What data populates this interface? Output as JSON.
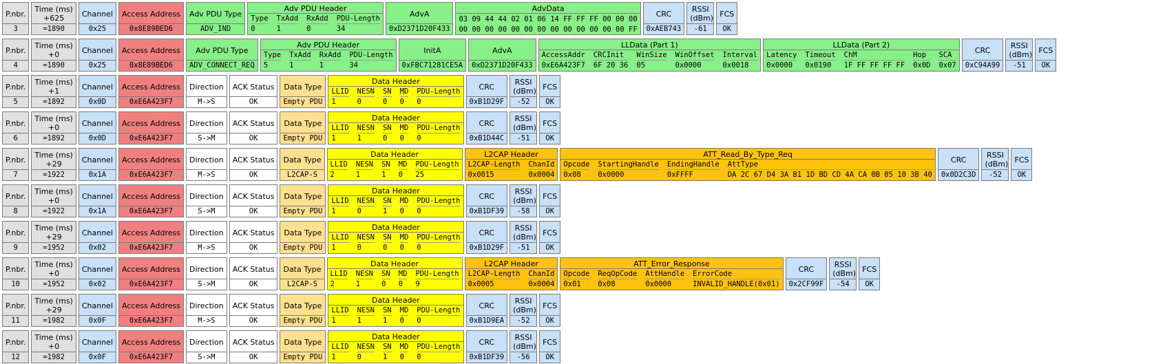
{
  "packets": [
    {
      "fields": [
        {
          "label": "P.nbr.",
          "value": "3",
          "color": "#e0e0e0"
        },
        {
          "label": "Time (ms)",
          "delta": "+625",
          "value": "=1890",
          "color": "#e0e0e0"
        },
        {
          "label": "Channel",
          "value": "0x25",
          "color": "#c8e0f8"
        },
        {
          "label": "Access Address",
          "value": "0x8E89BED6",
          "color": "#f08080"
        },
        {
          "label": "Adv PDU Type",
          "value": "ADV_IND",
          "color": "#88f088"
        },
        {
          "label": "Adv PDU Header",
          "columns": [
            "Type",
            "TxAdd",
            "RxAdd",
            "PDU-Length"
          ],
          "values": [
            "0",
            "1",
            "0",
            "34"
          ],
          "color": "#88f088"
        },
        {
          "label": "AdvA",
          "value": "0xD2371D20F433",
          "color": "#88f088"
        },
        {
          "label": "AdvData",
          "lines": [
            "03 09 44 44 02 01 06 14 FF FF FF 00 00 00",
            "00 00 00 00 00 00 00 00 00 00 00 00 00 FF"
          ],
          "color": "#88f088"
        },
        {
          "label": "CRC",
          "value": "0xAEB743",
          "color": "#c8e0f8"
        },
        {
          "label": "RSSI (dBm)",
          "value": "-61",
          "color": "#c8e0f8"
        },
        {
          "label": "FCS",
          "value": "OK",
          "color": "#c8e0f8"
        }
      ]
    },
    {
      "fields": [
        {
          "label": "P.nbr.",
          "value": "4",
          "color": "#e0e0e0"
        },
        {
          "label": "Time (ms)",
          "delta": "+0",
          "value": "=1890",
          "color": "#e0e0e0"
        },
        {
          "label": "Channel",
          "value": "0x25",
          "color": "#c8e0f8"
        },
        {
          "label": "Access Address",
          "value": "0x8E89BED6",
          "color": "#f08080"
        },
        {
          "label": "Adv PDU Type",
          "value": "ADV_CONNECT_REQ",
          "color": "#88f088"
        },
        {
          "label": "Adv PDU Header",
          "columns": [
            "Type",
            "TxAdd",
            "RxAdd",
            "PDU-Length"
          ],
          "values": [
            "5",
            "1",
            "1",
            "34"
          ],
          "color": "#88f088"
        },
        {
          "label": "InitA",
          "value": "0xFBC71281CE5A",
          "color": "#88f088"
        },
        {
          "label": "AdvA",
          "value": "0xD2371D20F433",
          "color": "#88f088"
        },
        {
          "label": "LLData (Part 1)",
          "columns": [
            "AccessAddr",
            "CRCInit",
            "WinSize",
            "WinOffset",
            "Interval"
          ],
          "values": [
            "0xE6A423F7",
            "6F 20 36",
            "05",
            "0x0000",
            "0x0018"
          ],
          "color": "#88f088"
        },
        {
          "label": "LLData (Part 2)",
          "columns": [
            "Latency",
            "Timeout",
            "ChM",
            "Hop",
            "SCA"
          ],
          "values": [
            "0x0000",
            "0x0190",
            "1F FF FF FF FF",
            "0x0D",
            "0x07"
          ],
          "color": "#88f088"
        },
        {
          "label": "CRC",
          "value": "0xC94A99",
          "color": "#c8e0f8"
        },
        {
          "label": "RSSI (dBm)",
          "value": "-51",
          "color": "#c8e0f8"
        },
        {
          "label": "FCS",
          "value": "OK",
          "color": "#c8e0f8"
        }
      ]
    },
    {
      "fields": [
        {
          "label": "P.nbr.",
          "value": "5",
          "color": "#e0e0e0"
        },
        {
          "label": "Time (ms)",
          "delta": "+1",
          "value": "=1892",
          "color": "#e0e0e0"
        },
        {
          "label": "Channel",
          "value": "0x0D",
          "color": "#c8e0f8"
        },
        {
          "label": "Access Address",
          "value": "0xE6A423F7",
          "color": "#f08080"
        },
        {
          "label": "Direction",
          "value": "M->S",
          "color": "#ffffff"
        },
        {
          "label": "ACK Status",
          "value": "OK",
          "color": "#ffffff"
        },
        {
          "label": "Data Type",
          "value": "Empty PDU",
          "color": "#ffe090"
        },
        {
          "label": "Data Header",
          "columns": [
            "LLID",
            "NESN",
            "SN",
            "MD",
            "PDU-Length"
          ],
          "values": [
            "1",
            "0",
            "0",
            "0",
            "0"
          ],
          "color": "#ffff00"
        },
        {
          "label": "CRC",
          "value": "0xB1D29F",
          "color": "#c8e0f8"
        },
        {
          "label": "RSSI (dBm)",
          "value": "-52",
          "color": "#c8e0f8"
        },
        {
          "label": "FCS",
          "value": "OK",
          "color": "#c8e0f8"
        }
      ]
    },
    {
      "fields": [
        {
          "label": "P.nbr.",
          "value": "6",
          "color": "#e0e0e0"
        },
        {
          "label": "Time (ms)",
          "delta": "+0",
          "value": "=1892",
          "color": "#e0e0e0"
        },
        {
          "label": "Channel",
          "value": "0x0D",
          "color": "#c8e0f8"
        },
        {
          "label": "Access Address",
          "value": "0xE6A423F7",
          "color": "#f08080"
        },
        {
          "label": "Direction",
          "value": "S->M",
          "color": "#ffffff"
        },
        {
          "label": "ACK Status",
          "value": "OK",
          "color": "#ffffff"
        },
        {
          "label": "Data Type",
          "value": "Empty PDU",
          "color": "#ffe090"
        },
        {
          "label": "Data Header",
          "columns": [
            "LLID",
            "NESN",
            "SN",
            "MD",
            "PDU-Length"
          ],
          "values": [
            "1",
            "1",
            "0",
            "0",
            "0"
          ],
          "color": "#ffff00"
        },
        {
          "label": "CRC",
          "value": "0xB1D44C",
          "color": "#c8e0f8"
        },
        {
          "label": "RSSI (dBm)",
          "value": "-51",
          "color": "#c8e0f8"
        },
        {
          "label": "FCS",
          "value": "OK",
          "color": "#c8e0f8"
        }
      ]
    },
    {
      "fields": [
        {
          "label": "P.nbr.",
          "value": "7",
          "color": "#e0e0e0"
        },
        {
          "label": "Time (ms)",
          "delta": "+29",
          "value": "=1922",
          "color": "#e0e0e0"
        },
        {
          "label": "Channel",
          "value": "0x1A",
          "color": "#c8e0f8"
        },
        {
          "label": "Access Address",
          "value": "0xE6A423F7",
          "color": "#f08080"
        },
        {
          "label": "Direction",
          "value": "M->S",
          "color": "#ffffff"
        },
        {
          "label": "ACK Status",
          "value": "OK",
          "color": "#ffffff"
        },
        {
          "label": "Data Type",
          "value": "L2CAP-S",
          "color": "#ffe090"
        },
        {
          "label": "Data Header",
          "columns": [
            "LLID",
            "NESN",
            "SN",
            "MD",
            "PDU-Length"
          ],
          "values": [
            "2",
            "1",
            "1",
            "0",
            "25"
          ],
          "color": "#ffff00"
        },
        {
          "label": "L2CAP Header",
          "columns": [
            "L2CAP-Length",
            "ChanId"
          ],
          "values": [
            "0x0015",
            "0x0004"
          ],
          "color": "#ffc20e"
        },
        {
          "label": "ATT_Read_By_Type_Req",
          "columns": [
            "Opcode",
            "StartingHandle",
            "EndingHandle",
            "AttType"
          ],
          "values": [
            "0x08",
            "0x0000",
            "0xFFFF",
            "DA 2C 67 D4 3A B1 1D BD CD 4A CA 0B 05 10 3B 40"
          ],
          "color": "#ffc20e"
        },
        {
          "label": "CRC",
          "value": "0x0D2C3D",
          "color": "#c8e0f8"
        },
        {
          "label": "RSSI (dBm)",
          "value": "-52",
          "color": "#c8e0f8"
        },
        {
          "label": "FCS",
          "value": "OK",
          "color": "#c8e0f8"
        }
      ]
    },
    {
      "fields": [
        {
          "label": "P.nbr.",
          "value": "8",
          "color": "#e0e0e0"
        },
        {
          "label": "Time (ms)",
          "delta": "+0",
          "value": "=1922",
          "color": "#e0e0e0"
        },
        {
          "label": "Channel",
          "value": "0x1A",
          "color": "#c8e0f8"
        },
        {
          "label": "Access Address",
          "value": "0xE6A423F7",
          "color": "#f08080"
        },
        {
          "label": "Direction",
          "value": "S->M",
          "color": "#ffffff"
        },
        {
          "label": "ACK Status",
          "value": "OK",
          "color": "#ffffff"
        },
        {
          "label": "Data Type",
          "value": "Empty PDU",
          "color": "#ffe090"
        },
        {
          "label": "Data Header",
          "columns": [
            "LLID",
            "NESN",
            "SN",
            "MD",
            "PDU-Length"
          ],
          "values": [
            "1",
            "0",
            "1",
            "0",
            "0"
          ],
          "color": "#ffff00"
        },
        {
          "label": "CRC",
          "value": "0xB1DF39",
          "color": "#c8e0f8"
        },
        {
          "label": "RSSI (dBm)",
          "value": "-58",
          "color": "#c8e0f8"
        },
        {
          "label": "FCS",
          "value": "OK",
          "color": "#c8e0f8"
        }
      ]
    },
    {
      "fields": [
        {
          "label": "P.nbr.",
          "value": "9",
          "color": "#e0e0e0"
        },
        {
          "label": "Time (ms)",
          "delta": "+29",
          "value": "=1952",
          "color": "#e0e0e0"
        },
        {
          "label": "Channel",
          "value": "0x02",
          "color": "#c8e0f8"
        },
        {
          "label": "Access Address",
          "value": "0xE6A423F7",
          "color": "#f08080"
        },
        {
          "label": "Direction",
          "value": "M->S",
          "color": "#ffffff"
        },
        {
          "label": "ACK Status",
          "value": "OK",
          "color": "#ffffff"
        },
        {
          "label": "Data Type",
          "value": "Empty PDU",
          "color": "#ffe090"
        },
        {
          "label": "Data Header",
          "columns": [
            "LLID",
            "NESN",
            "SN",
            "MD",
            "PDU-Length"
          ],
          "values": [
            "1",
            "0",
            "0",
            "0",
            "0"
          ],
          "color": "#ffff00"
        },
        {
          "label": "CRC",
          "value": "0xB1D29F",
          "color": "#c8e0f8"
        },
        {
          "label": "RSSI (dBm)",
          "value": "-51",
          "color": "#c8e0f8"
        },
        {
          "label": "FCS",
          "value": "OK",
          "color": "#c8e0f8"
        }
      ]
    },
    {
      "fields": [
        {
          "label": "P.nbr.",
          "value": "10",
          "color": "#e0e0e0"
        },
        {
          "label": "Time (ms)",
          "delta": "+0",
          "value": "=1952",
          "color": "#e0e0e0"
        },
        {
          "label": "Channel",
          "value": "0x02",
          "color": "#c8e0f8"
        },
        {
          "label": "Access Address",
          "value": "0xE6A423F7",
          "color": "#f08080"
        },
        {
          "label": "Direction",
          "value": "S->M",
          "color": "#ffffff"
        },
        {
          "label": "ACK Status",
          "value": "OK",
          "color": "#ffffff"
        },
        {
          "label": "Data Type",
          "value": "L2CAP-S",
          "color": "#ffe090"
        },
        {
          "label": "Data Header",
          "columns": [
            "LLID",
            "NESN",
            "SN",
            "MD",
            "PDU-Length"
          ],
          "values": [
            "2",
            "1",
            "0",
            "0",
            "9"
          ],
          "color": "#ffff00"
        },
        {
          "label": "L2CAP Header",
          "columns": [
            "L2CAP-Length",
            "ChanId"
          ],
          "values": [
            "0x0005",
            "0x0004"
          ],
          "color": "#ffc20e"
        },
        {
          "label": "ATT_Error_Response",
          "columns": [
            "Opcode",
            "ReqOpCode",
            "AttHandle",
            "ErrorCode"
          ],
          "values": [
            "0x01",
            "0x08",
            "0x0000",
            "INVALID_HANDLE(0x01)"
          ],
          "color": "#ffc20e"
        },
        {
          "label": "CRC",
          "value": "0x2CF99F",
          "color": "#c8e0f8"
        },
        {
          "label": "RSSI (dBm)",
          "value": "-54",
          "color": "#c8e0f8"
        },
        {
          "label": "FCS",
          "value": "OK",
          "color": "#c8e0f8"
        }
      ]
    },
    {
      "fields": [
        {
          "label": "P.nbr.",
          "value": "11",
          "color": "#e0e0e0"
        },
        {
          "label": "Time (ms)",
          "delta": "+29",
          "value": "=1982",
          "color": "#e0e0e0"
        },
        {
          "label": "Channel",
          "value": "0x0F",
          "color": "#c8e0f8"
        },
        {
          "label": "Access Address",
          "value": "0xE6A423F7",
          "color": "#f08080"
        },
        {
          "label": "Direction",
          "value": "M->S",
          "color": "#ffffff"
        },
        {
          "label": "ACK Status",
          "value": "OK",
          "color": "#ffffff"
        },
        {
          "label": "Data Type",
          "value": "Empty PDU",
          "color": "#ffe090"
        },
        {
          "label": "Data Header",
          "columns": [
            "LLID",
            "NESN",
            "SN",
            "MD",
            "PDU-Length"
          ],
          "values": [
            "1",
            "1",
            "1",
            "0",
            "0"
          ],
          "color": "#ffff00"
        },
        {
          "label": "CRC",
          "value": "0xB1D9EA",
          "color": "#c8e0f8"
        },
        {
          "label": "RSSI (dBm)",
          "value": "-52",
          "color": "#c8e0f8"
        },
        {
          "label": "FCS",
          "value": "OK",
          "color": "#c8e0f8"
        }
      ]
    },
    {
      "fields": [
        {
          "label": "P.nbr.",
          "value": "12",
          "color": "#e0e0e0"
        },
        {
          "label": "Time (ms)",
          "delta": "+0",
          "value": "=1982",
          "color": "#e0e0e0"
        },
        {
          "label": "Channel",
          "value": "0x0F",
          "color": "#c8e0f8"
        },
        {
          "label": "Access Address",
          "value": "0xE6A423F7",
          "color": "#f08080"
        },
        {
          "label": "Direction",
          "value": "S->M",
          "color": "#ffffff"
        },
        {
          "label": "ACK Status",
          "value": "OK",
          "color": "#ffffff"
        },
        {
          "label": "Data Type",
          "value": "Empty PDU",
          "color": "#ffe090"
        },
        {
          "label": "Data Header",
          "columns": [
            "LLID",
            "NESN",
            "SN",
            "MD",
            "PDU-Length"
          ],
          "values": [
            "1",
            "0",
            "1",
            "0",
            "0"
          ],
          "color": "#ffff00"
        },
        {
          "label": "CRC",
          "value": "0xB1DF39",
          "color": "#c8e0f8"
        },
        {
          "label": "RSSI (dBm)",
          "value": "-56",
          "color": "#c8e0f8"
        },
        {
          "label": "FCS",
          "value": "OK",
          "color": "#c8e0f8"
        }
      ]
    }
  ]
}
